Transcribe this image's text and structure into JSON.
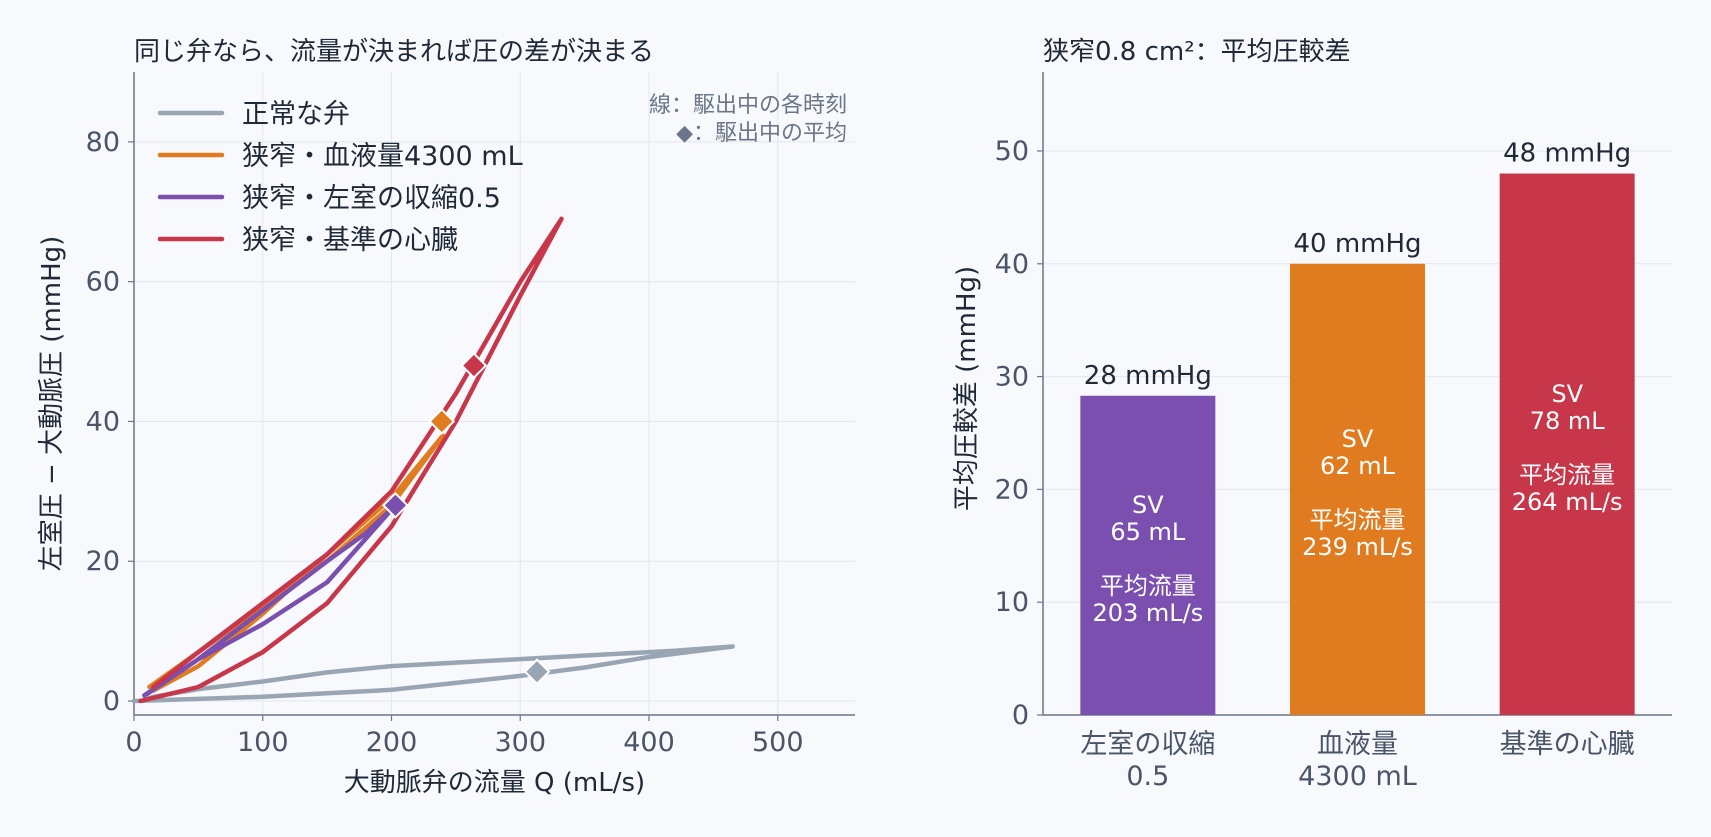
{
  "chart_data": [
    {
      "type": "line",
      "title": "同じ弁なら、流量が決まれば圧の差が決まる",
      "xlabel": "大動脈弁の流量 Q (mL/s)",
      "ylabel": "左室圧 − 大動脈圧 (mmHg)",
      "xlim": [
        0,
        560
      ],
      "ylim": [
        -2,
        90
      ],
      "xticks": [
        0,
        100,
        200,
        300,
        400,
        500
      ],
      "yticks": [
        0,
        20,
        40,
        60,
        80
      ],
      "x_tick_labels": [
        "0",
        "100",
        "200",
        "300",
        "400",
        "500"
      ],
      "y_tick_labels": [
        "0",
        "20",
        "40",
        "60",
        "80"
      ],
      "grid": true,
      "legend": "top-left",
      "annotation_lines": [
        "線：駆出中の各時刻",
        "◆：駆出中の平均"
      ],
      "series": [
        {
          "name": "正常な弁",
          "color": "#9aa5b4",
          "x": [
            0,
            50,
            100,
            150,
            200,
            250,
            300,
            350,
            400,
            465,
            420,
            380,
            340,
            300,
            250,
            200,
            150,
            100,
            50,
            15,
            8
          ],
          "y": [
            0,
            0.3,
            0.6,
            1.1,
            1.6,
            2.6,
            3.6,
            4.8,
            6.3,
            7.8,
            7.2,
            6.8,
            6.4,
            6.0,
            5.5,
            5.0,
            4.1,
            2.8,
            1.7,
            0.6,
            0.2
          ],
          "mean": {
            "x": 313,
            "y": 4.2
          }
        },
        {
          "name": "狭窄・血液量4300 mL",
          "color": "#e07b1f",
          "x": [
            12,
            50,
            100,
            150,
            200,
            240,
            200,
            150,
            100,
            50,
            15
          ],
          "y": [
            2,
            7,
            13.5,
            20,
            28,
            38,
            29,
            21,
            12.5,
            5,
            1.5
          ],
          "mean": {
            "x": 239,
            "y": 40
          }
        },
        {
          "name": "狭窄・左室の収縮0.5",
          "color": "#7b4fb0",
          "x": [
            8,
            50,
            100,
            150,
            203,
            180,
            150,
            100,
            50,
            10
          ],
          "y": [
            0.8,
            6,
            11,
            17,
            28,
            24,
            20,
            13,
            6,
            1
          ],
          "mean": {
            "x": 203,
            "y": 28
          }
        },
        {
          "name": "狭窄・基準の心臓",
          "color": "#c8364a",
          "x": [
            5,
            50,
            100,
            150,
            200,
            250,
            300,
            332,
            300,
            250,
            200,
            150,
            100,
            50,
            15
          ],
          "y": [
            0,
            2,
            7,
            14,
            25,
            40,
            58,
            69,
            60,
            44,
            30,
            21,
            14,
            7,
            2
          ],
          "mean": {
            "x": 264,
            "y": 48
          }
        }
      ]
    },
    {
      "type": "bar",
      "title": "狭窄0.8 cm²：平均圧較差",
      "ylabel": "平均圧較差 (mmHg)",
      "ylim": [
        0,
        57
      ],
      "yticks": [
        0,
        10,
        20,
        30,
        40,
        50
      ],
      "y_tick_labels": [
        "0",
        "10",
        "20",
        "30",
        "40",
        "50"
      ],
      "grid": true,
      "categories": [
        [
          "左室の収縮",
          "0.5"
        ],
        [
          "血液量",
          "4300 mL"
        ],
        [
          "基準の心臓"
        ]
      ],
      "values": [
        28.3,
        40,
        48
      ],
      "value_labels": [
        "28 mmHg",
        "40 mmHg",
        "48 mmHg"
      ],
      "colors": [
        "#7b4fb0",
        "#e07b1f",
        "#c8364a"
      ],
      "inner_labels": [
        [
          "SV",
          "65 mL",
          "",
          "平均流量",
          "203 mL/s"
        ],
        [
          "SV",
          "62 mL",
          "",
          "平均流量",
          "239 mL/s"
        ],
        [
          "SV",
          "78 mL",
          "",
          "平均流量",
          "264 mL/s"
        ]
      ]
    }
  ]
}
